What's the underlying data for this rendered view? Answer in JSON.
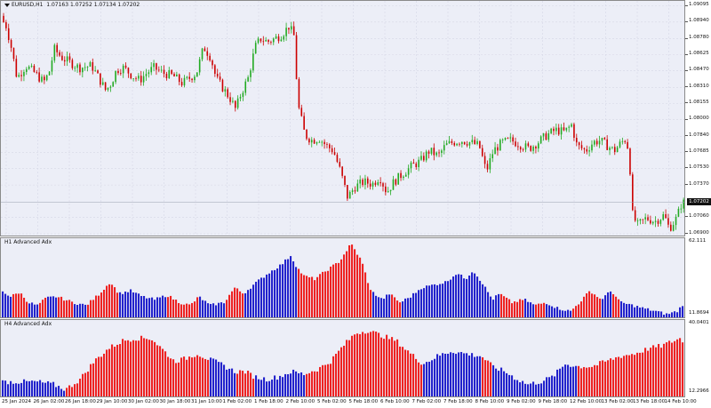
{
  "main": {
    "symbol": "EURUSD,H1",
    "ohlc": "1.07163 1.07252 1.07134 1.07202",
    "price_scale": [
      "1.09095",
      "1.08940",
      "1.08780",
      "1.08625",
      "1.08470",
      "1.08310",
      "1.08155",
      "1.08000",
      "1.07840",
      "1.07685",
      "1.07530",
      "1.07370",
      "1.07060",
      "1.06900"
    ],
    "current_price": "1.07202",
    "price_min": 1.069,
    "price_max": 1.0911,
    "candle_count": 268,
    "up_color": "#22aa22",
    "down_color": "#cc0000",
    "path": [
      [
        0,
        1.09
      ],
      [
        8,
        1.089
      ],
      [
        14,
        1.0868
      ],
      [
        20,
        1.084
      ],
      [
        30,
        1.0852
      ],
      [
        40,
        1.0845
      ],
      [
        50,
        1.0836
      ],
      [
        56,
        1.0845
      ],
      [
        62,
        1.0868
      ],
      [
        70,
        1.086
      ],
      [
        80,
        1.0855
      ],
      [
        90,
        1.085
      ],
      [
        104,
        1.0852
      ],
      [
        112,
        1.084
      ],
      [
        120,
        1.0828
      ],
      [
        126,
        1.0835
      ],
      [
        132,
        1.0848
      ],
      [
        140,
        1.085
      ],
      [
        150,
        1.0842
      ],
      [
        158,
        1.0838
      ],
      [
        166,
        1.0845
      ],
      [
        174,
        1.085
      ],
      [
        184,
        1.0845
      ],
      [
        196,
        1.0842
      ],
      [
        206,
        1.0835
      ],
      [
        214,
        1.084
      ],
      [
        222,
        1.0845
      ],
      [
        230,
        1.087
      ],
      [
        238,
        1.086
      ],
      [
        244,
        1.084
      ],
      [
        252,
        1.083
      ],
      [
        260,
        1.082
      ],
      [
        266,
        1.081
      ],
      [
        272,
        1.0825
      ],
      [
        280,
        1.084
      ],
      [
        288,
        1.087
      ],
      [
        294,
        1.0878
      ],
      [
        302,
        1.0875
      ],
      [
        310,
        1.0878
      ],
      [
        318,
        1.0882
      ],
      [
        326,
        1.089
      ],
      [
        332,
        1.088
      ],
      [
        336,
        1.0815
      ],
      [
        344,
        1.0785
      ],
      [
        352,
        1.078
      ],
      [
        360,
        1.0782
      ],
      [
        368,
        1.0775
      ],
      [
        376,
        1.077
      ],
      [
        384,
        1.075
      ],
      [
        392,
        1.0725
      ],
      [
        400,
        1.0735
      ],
      [
        410,
        1.074
      ],
      [
        420,
        1.0738
      ],
      [
        428,
        1.0745
      ],
      [
        436,
        1.073
      ],
      [
        444,
        1.074
      ],
      [
        454,
        1.0748
      ],
      [
        464,
        1.0755
      ],
      [
        474,
        1.076
      ],
      [
        484,
        1.077
      ],
      [
        494,
        1.0765
      ],
      [
        502,
        1.0775
      ],
      [
        510,
        1.0778
      ],
      [
        520,
        1.078
      ],
      [
        530,
        1.0778
      ],
      [
        540,
        1.0775
      ],
      [
        548,
        1.075
      ],
      [
        556,
        1.077
      ],
      [
        566,
        1.0778
      ],
      [
        576,
        1.078
      ],
      [
        586,
        1.0776
      ],
      [
        596,
        1.0772
      ],
      [
        606,
        1.0778
      ],
      [
        616,
        1.0785
      ],
      [
        626,
        1.079
      ],
      [
        636,
        1.0788
      ],
      [
        644,
        1.0795
      ],
      [
        650,
        1.0775
      ],
      [
        660,
        1.077
      ],
      [
        668,
        1.0778
      ],
      [
        676,
        1.078
      ],
      [
        684,
        1.0775
      ],
      [
        692,
        1.077
      ],
      [
        700,
        1.0778
      ],
      [
        706,
        1.0782
      ],
      [
        710,
        1.075
      ],
      [
        712,
        1.071
      ],
      [
        718,
        1.0698
      ],
      [
        728,
        1.0705
      ],
      [
        738,
        1.0702
      ],
      [
        748,
        1.0708
      ],
      [
        754,
        1.0695
      ],
      [
        762,
        1.0705
      ],
      [
        768,
        1.072
      ]
    ]
  },
  "h1_adx": {
    "label": "H1 Advanced Adx",
    "scale_top": "62.111",
    "scale_bottom": "11.8694",
    "min": 11.8694,
    "max": 62.111,
    "colors": {
      "red": "#ee2222",
      "blue": "#2222cc"
    },
    "bar_count": 256,
    "profile": [
      [
        0,
        30,
        "b"
      ],
      [
        10,
        26,
        "r"
      ],
      [
        20,
        29,
        "r"
      ],
      [
        30,
        22,
        "b"
      ],
      [
        40,
        20,
        "r"
      ],
      [
        50,
        25,
        "b"
      ],
      [
        62,
        26,
        "r"
      ],
      [
        80,
        22,
        "b"
      ],
      [
        95,
        20,
        "r"
      ],
      [
        110,
        28,
        "r"
      ],
      [
        122,
        36,
        "r"
      ],
      [
        132,
        28,
        "b"
      ],
      [
        145,
        30,
        "b"
      ],
      [
        158,
        26,
        "b"
      ],
      [
        172,
        24,
        "b"
      ],
      [
        186,
        27,
        "r"
      ],
      [
        200,
        22,
        "r"
      ],
      [
        212,
        20,
        "r"
      ],
      [
        222,
        26,
        "b"
      ],
      [
        234,
        20,
        "b"
      ],
      [
        250,
        22,
        "r"
      ],
      [
        262,
        32,
        "r"
      ],
      [
        272,
        28,
        "b"
      ],
      [
        285,
        35,
        "b"
      ],
      [
        300,
        42,
        "b"
      ],
      [
        315,
        48,
        "b"
      ],
      [
        325,
        54,
        "b"
      ],
      [
        332,
        46,
        "r"
      ],
      [
        340,
        40,
        "r"
      ],
      [
        352,
        38,
        "r"
      ],
      [
        366,
        44,
        "r"
      ],
      [
        380,
        50,
        "r"
      ],
      [
        393,
        62,
        "r"
      ],
      [
        405,
        50,
        "r"
      ],
      [
        415,
        30,
        "b"
      ],
      [
        428,
        24,
        "b"
      ],
      [
        436,
        28,
        "r"
      ],
      [
        448,
        22,
        "b"
      ],
      [
        460,
        26,
        "b"
      ],
      [
        472,
        32,
        "b"
      ],
      [
        486,
        34,
        "b"
      ],
      [
        500,
        36,
        "b"
      ],
      [
        512,
        42,
        "b"
      ],
      [
        522,
        38,
        "b"
      ],
      [
        530,
        44,
        "b"
      ],
      [
        540,
        36,
        "b"
      ],
      [
        552,
        24,
        "b"
      ],
      [
        560,
        28,
        "r"
      ],
      [
        574,
        22,
        "r"
      ],
      [
        588,
        24,
        "b"
      ],
      [
        600,
        20,
        "r"
      ],
      [
        612,
        22,
        "b"
      ],
      [
        626,
        18,
        "b"
      ],
      [
        640,
        16,
        "r"
      ],
      [
        650,
        22,
        "r"
      ],
      [
        662,
        30,
        "r"
      ],
      [
        674,
        24,
        "b"
      ],
      [
        686,
        30,
        "r"
      ],
      [
        696,
        22,
        "b"
      ],
      [
        710,
        20,
        "b"
      ],
      [
        722,
        18,
        "b"
      ],
      [
        736,
        16,
        "b"
      ],
      [
        748,
        14,
        "b"
      ],
      [
        760,
        16,
        "b"
      ],
      [
        768,
        22,
        "b"
      ]
    ]
  },
  "h4_adx": {
    "label": "H4 Advanced Adx",
    "scale_top": "40.0401",
    "scale_bottom": "12.2966",
    "min": 12.2966,
    "max": 40.0401,
    "colors": {
      "red": "#ee2222",
      "blue": "#2222cc"
    },
    "bar_count": 256,
    "profile": [
      [
        0,
        18,
        "b"
      ],
      [
        20,
        18,
        "b"
      ],
      [
        40,
        18,
        "b"
      ],
      [
        58,
        17,
        "b"
      ],
      [
        72,
        15,
        "r"
      ],
      [
        88,
        19,
        "r"
      ],
      [
        104,
        26,
        "r"
      ],
      [
        120,
        31,
        "r"
      ],
      [
        136,
        34,
        "r"
      ],
      [
        150,
        35,
        "r"
      ],
      [
        168,
        35,
        "r"
      ],
      [
        180,
        31,
        "r"
      ],
      [
        194,
        26,
        "r"
      ],
      [
        206,
        27,
        "r"
      ],
      [
        220,
        29,
        "r"
      ],
      [
        232,
        27,
        "b"
      ],
      [
        246,
        25,
        "b"
      ],
      [
        262,
        22,
        "r"
      ],
      [
        274,
        22,
        "r"
      ],
      [
        284,
        20,
        "b"
      ],
      [
        298,
        19,
        "b"
      ],
      [
        312,
        20,
        "b"
      ],
      [
        326,
        22,
        "b"
      ],
      [
        340,
        21,
        "r"
      ],
      [
        356,
        23,
        "r"
      ],
      [
        370,
        26,
        "r"
      ],
      [
        384,
        32,
        "r"
      ],
      [
        398,
        37,
        "r"
      ],
      [
        412,
        38,
        "r"
      ],
      [
        428,
        36,
        "r"
      ],
      [
        444,
        34,
        "r"
      ],
      [
        460,
        29,
        "r"
      ],
      [
        474,
        25,
        "b"
      ],
      [
        490,
        28,
        "b"
      ],
      [
        506,
        30,
        "b"
      ],
      [
        522,
        29,
        "b"
      ],
      [
        540,
        28,
        "r"
      ],
      [
        552,
        24,
        "b"
      ],
      [
        566,
        22,
        "b"
      ],
      [
        580,
        19,
        "b"
      ],
      [
        592,
        17,
        "b"
      ],
      [
        606,
        18,
        "b"
      ],
      [
        620,
        20,
        "b"
      ],
      [
        634,
        25,
        "b"
      ],
      [
        648,
        24,
        "r"
      ],
      [
        664,
        24,
        "r"
      ],
      [
        680,
        26,
        "r"
      ],
      [
        696,
        28,
        "r"
      ],
      [
        712,
        29,
        "r"
      ],
      [
        728,
        31,
        "r"
      ],
      [
        742,
        32,
        "r"
      ],
      [
        756,
        34,
        "r"
      ],
      [
        764,
        35,
        "r"
      ],
      [
        768,
        33,
        "r"
      ]
    ]
  },
  "time_axis": [
    "25 Jan 2024",
    "26 Jan 02:00",
    "26 Jan 18:00",
    "29 Jan 10:00",
    "30 Jan 02:00",
    "30 Jan 18:00",
    "31 Jan 10:00",
    "1 Feb 02:00",
    "1 Feb 18:00",
    "2 Feb 10:00",
    "5 Feb 02:00",
    "5 Feb 18:00",
    "6 Feb 10:00",
    "7 Feb 02:00",
    "7 Feb 18:00",
    "8 Feb 10:00",
    "9 Feb 02:00",
    "9 Feb 18:00",
    "12 Feb 10:00",
    "13 Feb 02:00",
    "13 Feb 18:00",
    "14 Feb 10:00"
  ]
}
